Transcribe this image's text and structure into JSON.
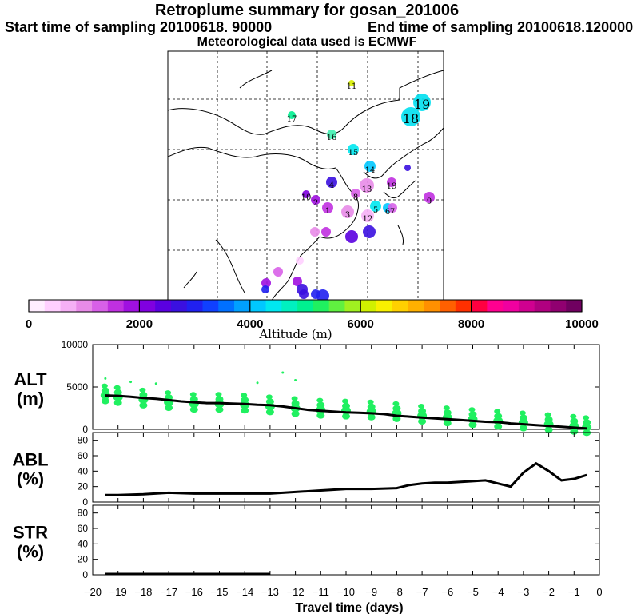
{
  "header": {
    "title": "Retroplume summary for gosan_201006",
    "start": "Start time of sampling 20100618. 90000",
    "end": "End time of sampling 20100618.120000",
    "met": "Meteorological data used is ECMWF"
  },
  "colorbar": {
    "label": "Altitude (m)",
    "ticks": [
      "0",
      "2000",
      "4000",
      "6000",
      "8000",
      "10000"
    ],
    "colors": [
      "#ffeeff",
      "#ffd0ff",
      "#f5b0f5",
      "#e88be8",
      "#d860e8",
      "#c030e0",
      "#a010e0",
      "#8000e0",
      "#5a00e0",
      "#3a10e0",
      "#2020f0",
      "#1040ff",
      "#0070ff",
      "#00a0ff",
      "#00c8ff",
      "#00e8f0",
      "#00f0c0",
      "#00f090",
      "#20f060",
      "#60f040",
      "#a0f020",
      "#d0f000",
      "#f8f000",
      "#ffd000",
      "#ffb000",
      "#ff9000",
      "#ff6000",
      "#ff3000",
      "#ff0040",
      "#ff0090",
      "#f000a0",
      "#d00090",
      "#b00080",
      "#900070",
      "#700060"
    ]
  },
  "chart_data": [
    {
      "type": "scatter",
      "panel": "ALT",
      "ylabel_main": "ALT",
      "ylabel_unit": "(m)",
      "ylim": [
        0,
        10000
      ],
      "yticks": [
        "0",
        "5000",
        "10000"
      ],
      "median_line": {
        "x": [
          -19.5,
          -19,
          -18.5,
          -18,
          -17.5,
          -17,
          -16.5,
          -16,
          -15.5,
          -15,
          -14.5,
          -14,
          -13.5,
          -13,
          -12.5,
          -12,
          -11.5,
          -11,
          -10.5,
          -10,
          -9.5,
          -9,
          -8.5,
          -8,
          -7.5,
          -7,
          -6.5,
          -6,
          -5.5,
          -5,
          -4.5,
          -4,
          -3.5,
          -3,
          -2.5,
          -2,
          -1.5,
          -1,
          -0.5
        ],
        "y": [
          4000,
          3950,
          3850,
          3700,
          3600,
          3450,
          3300,
          3200,
          3100,
          3100,
          3050,
          3000,
          2900,
          2850,
          2700,
          2500,
          2300,
          2200,
          2100,
          2000,
          1950,
          1900,
          1800,
          1600,
          1500,
          1400,
          1300,
          1200,
          1100,
          1000,
          900,
          850,
          700,
          600,
          500,
          400,
          300,
          200,
          100
        ]
      },
      "clusters": {
        "x": [
          -19.5,
          -19,
          -18,
          -17,
          -16,
          -15,
          -14,
          -13,
          -12,
          -11,
          -10,
          -9,
          -8,
          -7,
          -6,
          -5,
          -4,
          -3,
          -2,
          -1,
          -0.5
        ],
        "y": [
          4000,
          3800,
          3500,
          3200,
          3000,
          3000,
          2900,
          2700,
          2500,
          2300,
          2200,
          2100,
          1900,
          1600,
          1400,
          1200,
          1000,
          800,
          600,
          400,
          250
        ]
      },
      "outliers": {
        "x": [
          -19.5,
          -18.5,
          -17.5,
          -12.5,
          -12,
          -13.5
        ],
        "y": [
          6000,
          5600,
          5400,
          6700,
          5800,
          5500
        ]
      }
    },
    {
      "type": "line",
      "panel": "ABL",
      "ylabel_main": "ABL",
      "ylabel_unit": "(%)",
      "ylim": [
        0,
        90
      ],
      "yticks": [
        "0",
        "20",
        "40",
        "60",
        "80"
      ],
      "x": [
        -19.5,
        -19,
        -18,
        -17,
        -16,
        -15,
        -14,
        -13,
        -12,
        -11,
        -10,
        -9,
        -8,
        -7.5,
        -7,
        -6.5,
        -6,
        -5,
        -4.5,
        -4,
        -3.5,
        -3,
        -2.5,
        -2,
        -1.5,
        -1,
        -0.5
      ],
      "y": [
        9,
        9,
        10,
        12,
        11,
        11,
        11,
        11,
        13,
        15,
        17,
        17,
        18,
        22,
        24,
        25,
        25,
        27,
        28,
        24,
        20,
        38,
        50,
        40,
        28,
        30,
        35
      ]
    },
    {
      "type": "line",
      "panel": "STR",
      "ylabel_main": "STR",
      "ylabel_unit": "(%)",
      "ylim": [
        0,
        90
      ],
      "yticks": [
        "0",
        "20",
        "40",
        "60",
        "80"
      ],
      "x": [
        -19.5,
        -13
      ],
      "y": [
        1,
        1
      ]
    }
  ],
  "xaxis": {
    "label": "Travel time (days)",
    "ticks": [
      "−20",
      "−19",
      "−18",
      "−17",
      "−16",
      "−15",
      "−14",
      "−13",
      "−12",
      "−11",
      "−10",
      "−9",
      "−8",
      "−7",
      "−6",
      "−5",
      "−4",
      "−3",
      "−2",
      "−1",
      "0"
    ],
    "xlim": [
      -20,
      0
    ]
  },
  "map": {
    "daily_labels": [
      "11",
      "17",
      "16",
      "15",
      "19",
      "18",
      "14",
      "19",
      "13",
      "8",
      "4",
      "10",
      "2",
      "1",
      "3",
      "12",
      "5",
      "6",
      "7",
      "9"
    ]
  }
}
